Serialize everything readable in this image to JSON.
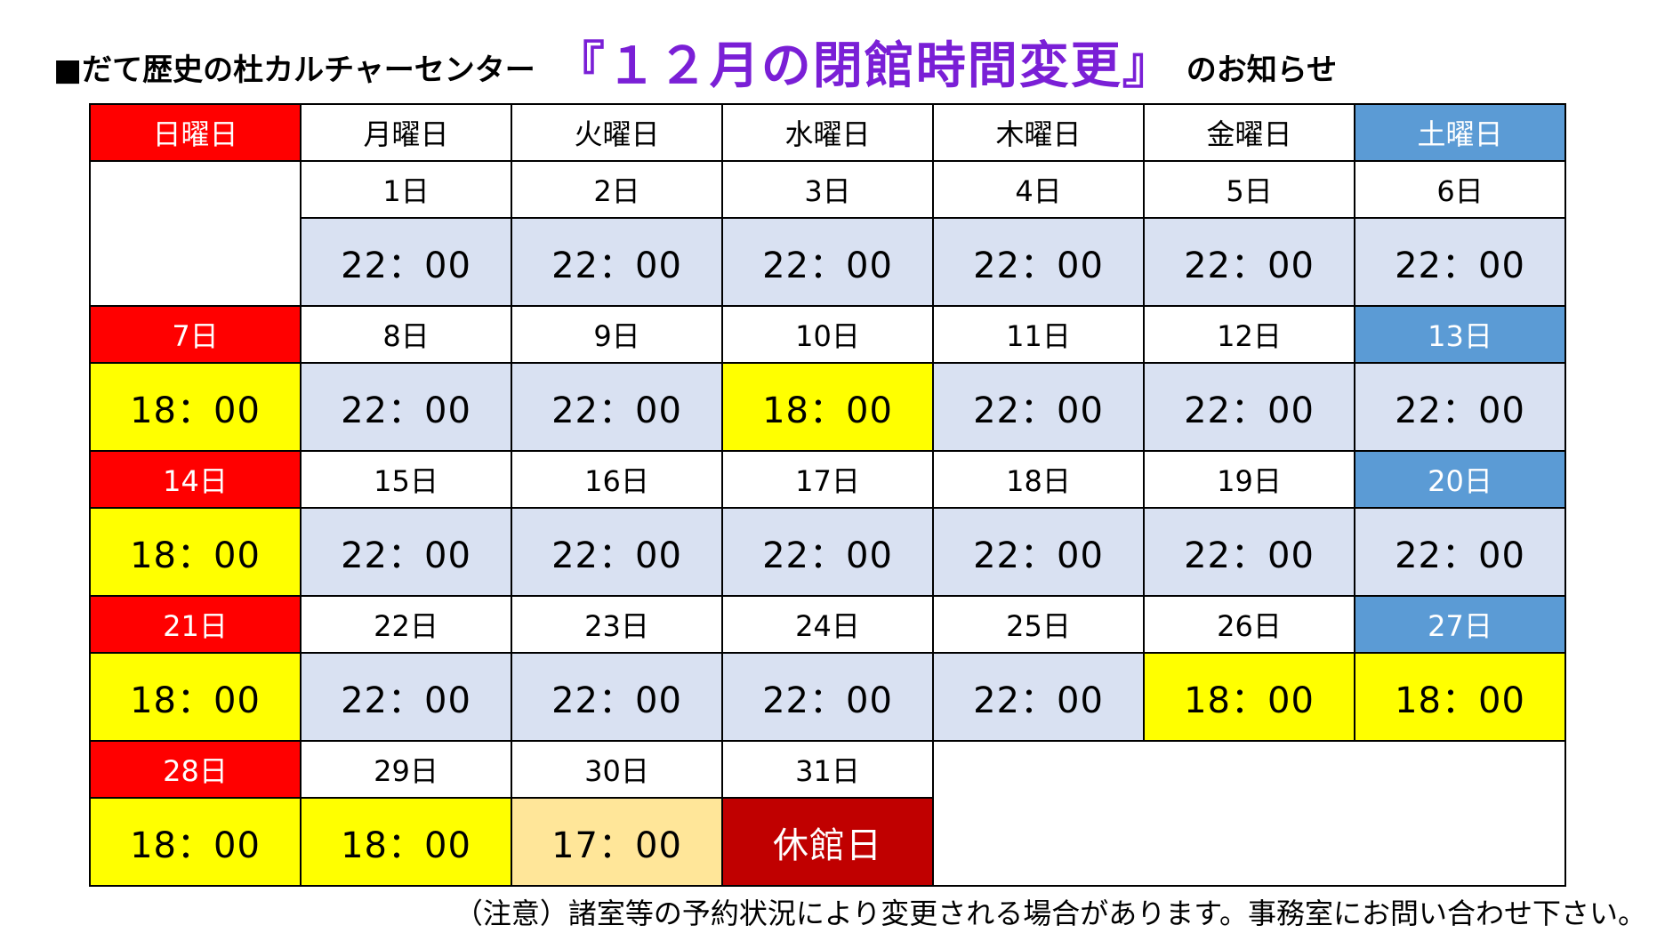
{
  "title": {
    "prefix": "■だて歴史の杜カルチャーセンター",
    "main": "『１２月の閉館時間変更』",
    "suffix": "のお知らせ"
  },
  "weekdays": [
    "日曜日",
    "月曜日",
    "火曜日",
    "水曜日",
    "木曜日",
    "金曜日",
    "土曜日"
  ],
  "weeks": [
    {
      "days": [
        "",
        "1日",
        "2日",
        "3日",
        "4日",
        "5日",
        "6日"
      ],
      "times": [
        "",
        "22：00",
        "22：00",
        "22：00",
        "22：00",
        "22：00",
        "22：00"
      ]
    },
    {
      "days": [
        "7日",
        "8日",
        "9日",
        "10日",
        "11日",
        "12日",
        "13日"
      ],
      "times": [
        "18：00",
        "22：00",
        "22：00",
        "18：00",
        "22：00",
        "22：00",
        "22：00"
      ]
    },
    {
      "days": [
        "14日",
        "15日",
        "16日",
        "17日",
        "18日",
        "19日",
        "20日"
      ],
      "times": [
        "18：00",
        "22：00",
        "22：00",
        "22：00",
        "22：00",
        "22：00",
        "22：00"
      ]
    },
    {
      "days": [
        "21日",
        "22日",
        "23日",
        "24日",
        "25日",
        "26日",
        "27日"
      ],
      "times": [
        "18：00",
        "22：00",
        "22：00",
        "22：00",
        "22：00",
        "18：00",
        "18：00"
      ]
    },
    {
      "days": [
        "28日",
        "29日",
        "30日",
        "31日",
        "",
        "",
        ""
      ],
      "times": [
        "18：00",
        "18：00",
        "17：00",
        "休館日",
        "",
        "",
        ""
      ]
    }
  ],
  "note": "（注意）諸室等の予約状況により変更される場合があります。事務室にお問い合わせ下さい。",
  "colors": {
    "title_purple": "#7a1fd6",
    "sunday_red": "#ff0000",
    "saturday_blue": "#5b9bd5",
    "normal_hours_gray": "#d9e1f2",
    "early_close_yellow": "#ffff00",
    "close_1700_beige": "#ffe699",
    "closed_darkred": "#c00000"
  }
}
